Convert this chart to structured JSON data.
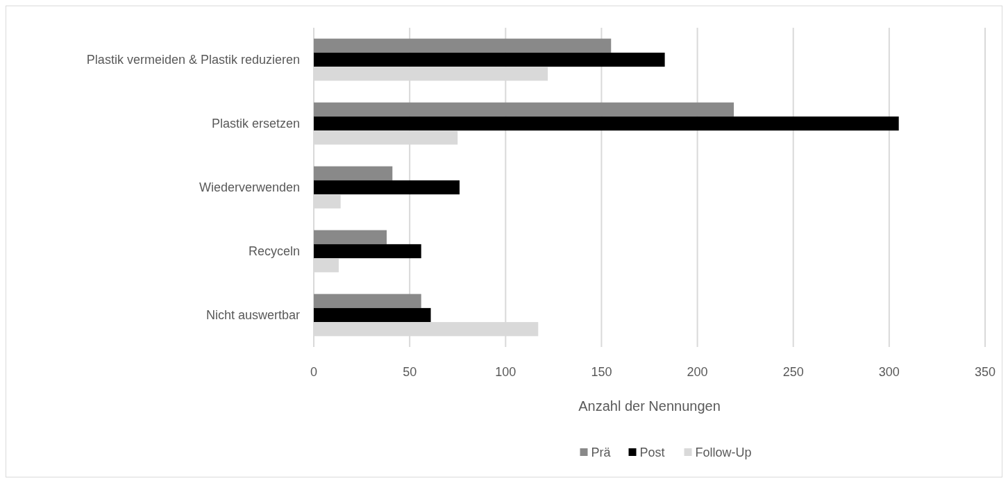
{
  "chart_data": {
    "type": "bar",
    "orientation": "horizontal",
    "xlabel": "Anzahl der Nennungen",
    "categories": [
      "Plastik vermeiden & Plastik reduzieren",
      "Plastik ersetzen",
      "Wiederverwenden",
      "Recyceln",
      "Nicht auswertbar"
    ],
    "series": [
      {
        "name": "Prä",
        "color": "#898989",
        "values": [
          155,
          219,
          41,
          38,
          56
        ]
      },
      {
        "name": "Post",
        "color": "#000000",
        "values": [
          183,
          305,
          76,
          56,
          61
        ]
      },
      {
        "name": "Follow-Up",
        "color": "#d9d9d9",
        "values": [
          122,
          75,
          14,
          13,
          117
        ]
      }
    ],
    "xlim": [
      0,
      350
    ],
    "xticks": [
      0,
      50,
      100,
      150,
      200,
      250,
      300,
      350
    ],
    "grid": "x",
    "legend": "bottom"
  }
}
